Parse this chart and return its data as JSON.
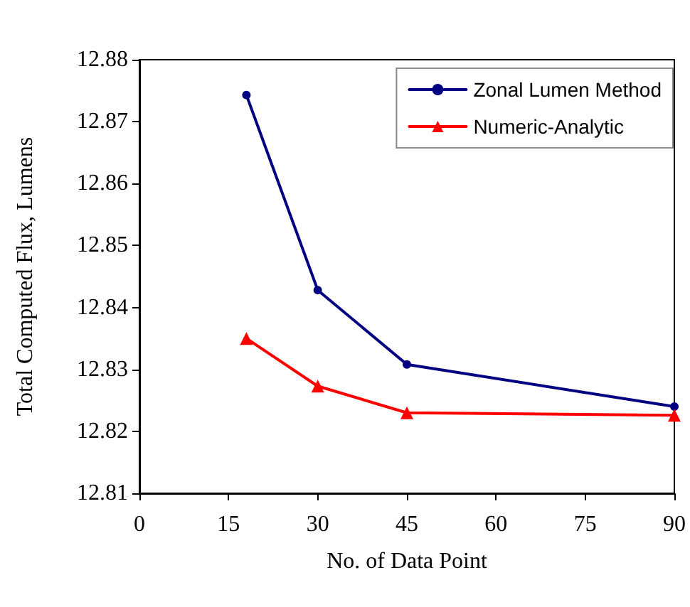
{
  "chart_data": {
    "type": "line",
    "xlabel": "No. of Data Point",
    "ylabel": "Total Computed Flux, Lumens",
    "x": [
      18,
      30,
      45,
      90
    ],
    "series": [
      {
        "name": "Zonal Lumen Method",
        "color": "#000080",
        "marker": "circle",
        "values": [
          12.8743,
          12.8428,
          12.8308,
          12.824
        ]
      },
      {
        "name": "Numeric-Analytic",
        "color": "#ff0000",
        "marker": "triangle",
        "values": [
          12.835,
          12.8273,
          12.823,
          12.8226
        ]
      }
    ],
    "xlim": [
      0,
      90
    ],
    "xticks": [
      0,
      15,
      30,
      45,
      60,
      75,
      90
    ],
    "ylim": [
      12.81,
      12.88
    ],
    "yticks": [
      12.81,
      12.82,
      12.83,
      12.84,
      12.85,
      12.86,
      12.87,
      12.88
    ],
    "grid": false,
    "legend": "top right"
  }
}
